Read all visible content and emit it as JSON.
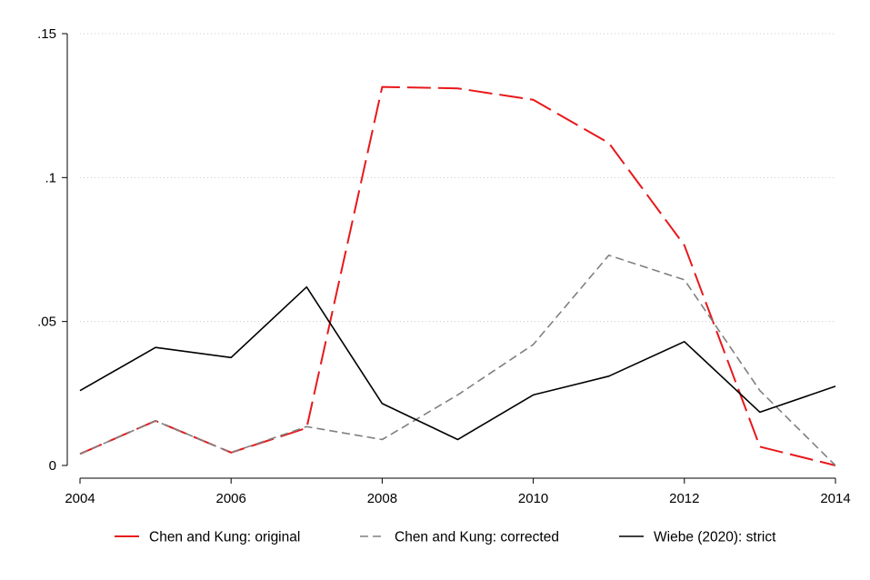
{
  "chart_data": {
    "type": "line",
    "title": "",
    "xlabel": "",
    "ylabel": "",
    "x": [
      2004,
      2005,
      2006,
      2007,
      2008,
      2009,
      2010,
      2011,
      2012,
      2013,
      2014
    ],
    "xlim": [
      2004,
      2014
    ],
    "ylim": [
      0,
      0.15
    ],
    "x_ticks": [
      2004,
      2006,
      2008,
      2010,
      2012,
      2014
    ],
    "x_tick_labels": [
      "2004",
      "2006",
      "2008",
      "2010",
      "2012",
      "2014"
    ],
    "y_ticks": [
      0,
      0.05,
      0.1,
      0.15
    ],
    "y_tick_labels": [
      "0",
      ".05",
      ".1",
      ".15"
    ],
    "grid": "horizontal dotted",
    "legend_position": "bottom",
    "series": [
      {
        "name": "Chen and Kung: original",
        "color": "#e8181b",
        "style": "long-dash",
        "values": [
          0.004,
          0.0155,
          0.0045,
          0.013,
          0.1315,
          0.131,
          0.127,
          0.112,
          0.0765,
          0.0065,
          0.0
        ]
      },
      {
        "name": "Chen and Kung: corrected",
        "color": "#808080",
        "style": "dash",
        "values": [
          0.004,
          0.0155,
          0.0045,
          0.0135,
          0.009,
          0.0245,
          0.042,
          0.073,
          0.0645,
          0.026,
          0.0
        ]
      },
      {
        "name": "Wiebe (2020): strict",
        "color": "#000000",
        "style": "solid",
        "values": [
          0.026,
          0.041,
          0.0375,
          0.062,
          0.0215,
          0.009,
          0.0245,
          0.031,
          0.043,
          0.0185,
          0.0275
        ]
      }
    ]
  }
}
